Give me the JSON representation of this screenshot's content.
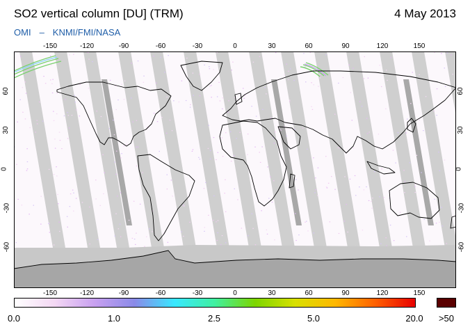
{
  "header": {
    "title": "SO2 vertical column [DU] (TRM)",
    "date": "4 May 2013",
    "source": "OMI",
    "dash": "–",
    "credits": "KNMI/FMI/NASA"
  },
  "map": {
    "projection": "equirectangular",
    "lon_range": [
      -180,
      180
    ],
    "lat_range": [
      -90,
      90
    ],
    "lon_ticks": [
      "-150",
      "-120",
      "-90",
      "-60",
      "-30",
      "0",
      "30",
      "60",
      "90",
      "120",
      "150"
    ],
    "lat_ticks": [
      "60",
      "30",
      "0",
      "-30",
      "-60"
    ],
    "colors": {
      "background": "#fcf8fc",
      "swath_gap": "#cfcfcf",
      "row_anomaly": "#a8a8a8",
      "polar_night": "#c8c8c8",
      "antarctica": "#a6a6a6",
      "coast": "#000000"
    }
  },
  "colorbar": {
    "labels": [
      "0.0",
      "1.0",
      "2.5",
      "5.0",
      "20.0",
      ">50"
    ],
    "over_color": "#5a0000",
    "stops": [
      "#ffffff",
      "#f4d8f4",
      "#c8a0f0",
      "#8a8ae8",
      "#38e8ff",
      "#40f0a0",
      "#7cd600",
      "#d8e000",
      "#ffb800",
      "#ff6000",
      "#e80000"
    ]
  }
}
